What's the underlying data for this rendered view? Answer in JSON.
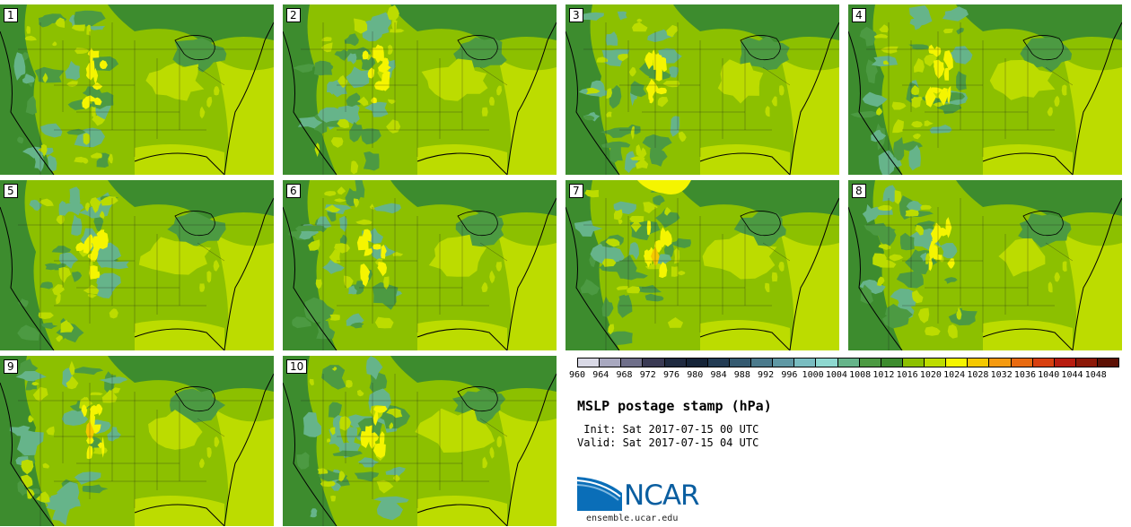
{
  "title": "MSLP postage stamp (hPa)",
  "init": " Init: Sat 2017-07-15 00 UTC",
  "valid": "Valid: Sat 2017-07-15 04 UTC",
  "logo_text": "NCAR",
  "site": "ensemble.ucar.edu",
  "members": [
    {
      "label": "1",
      "variant": 0
    },
    {
      "label": "2",
      "variant": 1
    },
    {
      "label": "3",
      "variant": 2
    },
    {
      "label": "4",
      "variant": 3
    },
    {
      "label": "5",
      "variant": 4
    },
    {
      "label": "6",
      "variant": 5
    },
    {
      "label": "7",
      "variant": 6
    },
    {
      "label": "8",
      "variant": 7
    },
    {
      "label": "9",
      "variant": 8
    },
    {
      "label": "10",
      "variant": 9
    }
  ],
  "legend": {
    "ticks": [
      "960",
      "964",
      "968",
      "972",
      "976",
      "980",
      "984",
      "988",
      "992",
      "996",
      "1000",
      "1004",
      "1008",
      "1012",
      "1016",
      "1020",
      "1024",
      "1028",
      "1032",
      "1036",
      "1040",
      "1044",
      "1048"
    ],
    "colors": [
      "#d9d9e6",
      "#a8a8bf",
      "#6f6f8a",
      "#3a3a54",
      "#1f2a40",
      "#152438",
      "#233c54",
      "#345a70",
      "#4b7a8c",
      "#5f98a4",
      "#79bcc0",
      "#8ed8d0",
      "#66b48a",
      "#4c9a42",
      "#3d8c2e",
      "#8cc000",
      "#bcdc00",
      "#f5f500",
      "#f5c800",
      "#f59a10",
      "#e86a10",
      "#d84010",
      "#b81c10",
      "#8c1808",
      "#5c1004"
    ],
    "colors_note": ""
  },
  "colors": {
    "low_dark": "#3d8c2e",
    "low_mid": "#4c9a42",
    "teal": "#66b48a",
    "base": "#8cc000",
    "high_light": "#bcdc00",
    "yellow": "#f5f500",
    "orange": "#f5c800"
  }
}
